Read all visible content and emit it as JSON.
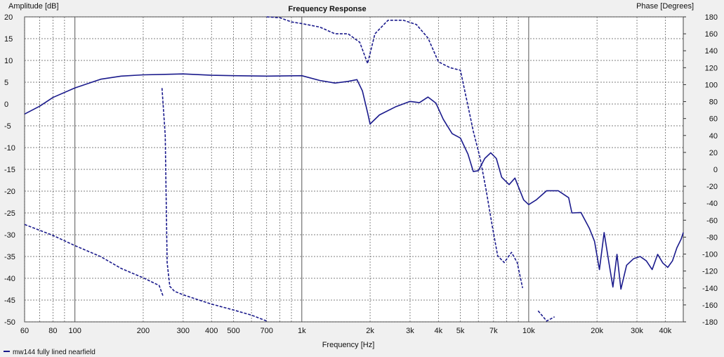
{
  "chart_data": {
    "type": "line",
    "title": "Frequency Response",
    "xlabel": "Frequency [Hz]",
    "ylabel_left": "Amplitude [dB]",
    "ylabel_right": "Phase [Degrees]",
    "x_scale": "log",
    "xlim": [
      60,
      48000
    ],
    "ylim_left": [
      -50,
      20
    ],
    "ylim_right": [
      -180,
      180
    ],
    "grid": true,
    "legend_position": "bottom-left",
    "x_tick_labels": [
      {
        "v": 60,
        "t": "60"
      },
      {
        "v": 80,
        "t": "80"
      },
      {
        "v": 100,
        "t": "100"
      },
      {
        "v": 200,
        "t": "200"
      },
      {
        "v": 300,
        "t": "300"
      },
      {
        "v": 400,
        "t": "400"
      },
      {
        "v": 500,
        "t": "500"
      },
      {
        "v": 700,
        "t": "700"
      },
      {
        "v": 1000,
        "t": "1k"
      },
      {
        "v": 2000,
        "t": "2k"
      },
      {
        "v": 3000,
        "t": "3k"
      },
      {
        "v": 4000,
        "t": "4k"
      },
      {
        "v": 5000,
        "t": "5k"
      },
      {
        "v": 7000,
        "t": "7k"
      },
      {
        "v": 10000,
        "t": "10k"
      },
      {
        "v": 20000,
        "t": "20k"
      },
      {
        "v": 30000,
        "t": "30k"
      },
      {
        "v": 40000,
        "t": "40k"
      }
    ],
    "y_ticks_left": [
      20,
      15,
      10,
      5,
      0,
      -5,
      -10,
      -15,
      -20,
      -25,
      -30,
      -35,
      -40,
      -45,
      -50
    ],
    "y_ticks_right": [
      180,
      160,
      140,
      120,
      100,
      80,
      60,
      40,
      20,
      0,
      -20,
      -40,
      -60,
      -80,
      -100,
      -120,
      -140,
      -160,
      -180
    ],
    "series": [
      {
        "name": "mw144 fully lined nearfield",
        "kind": "amplitude",
        "axis": "left",
        "color": "#1a1a8c",
        "style": "solid",
        "points": [
          [
            60,
            -2.3
          ],
          [
            70,
            -0.5
          ],
          [
            80,
            1.5
          ],
          [
            100,
            3.7
          ],
          [
            130,
            5.7
          ],
          [
            160,
            6.4
          ],
          [
            200,
            6.7
          ],
          [
            250,
            6.8
          ],
          [
            300,
            6.9
          ],
          [
            400,
            6.6
          ],
          [
            500,
            6.5
          ],
          [
            700,
            6.4
          ],
          [
            1000,
            6.5
          ],
          [
            1200,
            5.4
          ],
          [
            1400,
            4.8
          ],
          [
            1600,
            5.2
          ],
          [
            1750,
            5.6
          ],
          [
            1850,
            3.0
          ],
          [
            1950,
            -2.0
          ],
          [
            2000,
            -4.6
          ],
          [
            2200,
            -2.5
          ],
          [
            2600,
            -0.6
          ],
          [
            3000,
            0.6
          ],
          [
            3300,
            0.3
          ],
          [
            3600,
            1.6
          ],
          [
            3900,
            0.2
          ],
          [
            4200,
            -3.5
          ],
          [
            4600,
            -6.8
          ],
          [
            5000,
            -7.8
          ],
          [
            5400,
            -11.5
          ],
          [
            5700,
            -15.5
          ],
          [
            6000,
            -15.3
          ],
          [
            6400,
            -12.5
          ],
          [
            6800,
            -11.2
          ],
          [
            7200,
            -12.5
          ],
          [
            7600,
            -16.8
          ],
          [
            8200,
            -18.5
          ],
          [
            8700,
            -17.0
          ],
          [
            9500,
            -22.0
          ],
          [
            10000,
            -23.1
          ],
          [
            10800,
            -22.0
          ],
          [
            12000,
            -19.9
          ],
          [
            13500,
            -19.9
          ],
          [
            15000,
            -21.5
          ],
          [
            15500,
            -25.0
          ],
          [
            17000,
            -24.9
          ],
          [
            18500,
            -28.5
          ],
          [
            19500,
            -31.5
          ],
          [
            20500,
            -38.0
          ],
          [
            21500,
            -29.5
          ],
          [
            22500,
            -36.0
          ],
          [
            23500,
            -42.0
          ],
          [
            24500,
            -34.5
          ],
          [
            25500,
            -42.5
          ],
          [
            27000,
            -37.0
          ],
          [
            29000,
            -35.5
          ],
          [
            31000,
            -35.0
          ],
          [
            33000,
            -36.0
          ],
          [
            35000,
            -38.0
          ],
          [
            37000,
            -34.5
          ],
          [
            39000,
            -36.5
          ],
          [
            41000,
            -37.5
          ],
          [
            43000,
            -36.0
          ],
          [
            45000,
            -33.0
          ],
          [
            47000,
            -31.0
          ],
          [
            48000,
            -29.5
          ]
        ]
      },
      {
        "name": "phase",
        "kind": "phase",
        "axis": "right",
        "color": "#1a1a8c",
        "style": "dashed",
        "segments": [
          [
            [
              60,
              -65
            ],
            [
              80,
              -78
            ],
            [
              100,
              -90
            ],
            [
              130,
              -103
            ],
            [
              160,
              -117
            ],
            [
              200,
              -128
            ],
            [
              235,
              -137
            ],
            [
              245,
              -150
            ]
          ],
          [
            [
              242,
              96
            ],
            [
              250,
              40
            ],
            [
              255,
              -110
            ],
            [
              262,
              -138
            ],
            [
              275,
              -144
            ],
            [
              300,
              -148
            ],
            [
              350,
              -154
            ],
            [
              400,
              -159
            ],
            [
              500,
              -166
            ],
            [
              600,
              -172
            ],
            [
              700,
              -179
            ]
          ],
          [
            [
              700,
              180
            ],
            [
              800,
              179
            ],
            [
              900,
              174
            ],
            [
              1000,
              172
            ],
            [
              1200,
              168
            ],
            [
              1400,
              160
            ],
            [
              1600,
              160
            ],
            [
              1800,
              150
            ],
            [
              1950,
              125
            ],
            [
              2100,
              160
            ],
            [
              2400,
              176
            ],
            [
              2800,
              176
            ],
            [
              3200,
              171
            ],
            [
              3600,
              155
            ],
            [
              4000,
              127
            ],
            [
              4500,
              120
            ],
            [
              5000,
              117
            ],
            [
              5400,
              75
            ],
            [
              5700,
              45
            ],
            [
              6100,
              14
            ],
            [
              6500,
              -25
            ],
            [
              6900,
              -66
            ],
            [
              7300,
              -102
            ],
            [
              7800,
              -110
            ],
            [
              8400,
              -98
            ],
            [
              8900,
              -110
            ],
            [
              9400,
              -140
            ]
          ],
          [
            [
              11000,
              -167
            ],
            [
              12000,
              -179
            ],
            [
              13000,
              -174
            ]
          ]
        ]
      }
    ]
  }
}
